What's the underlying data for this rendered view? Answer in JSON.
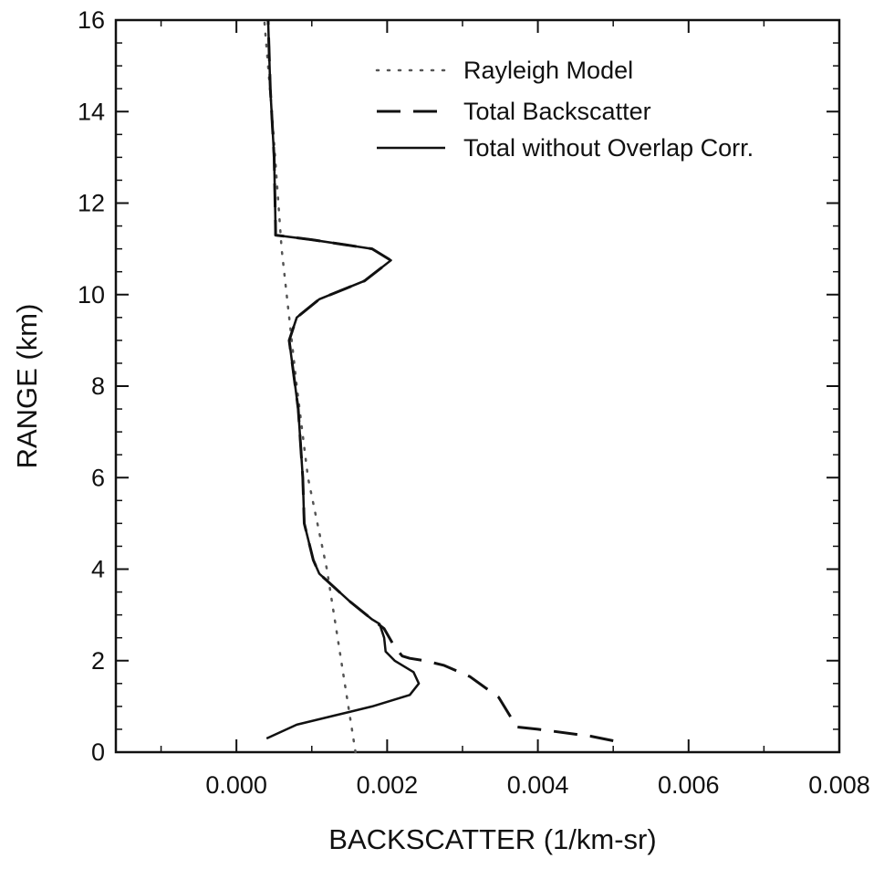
{
  "chart_data": {
    "type": "line",
    "title": "",
    "xlabel": "BACKSCATTER (1/km-sr)",
    "ylabel": "RANGE (km)",
    "xlim": [
      -0.0016,
      0.008
    ],
    "ylim": [
      0,
      16
    ],
    "x_ticks": [
      0.0,
      0.002,
      0.004,
      0.006,
      0.008
    ],
    "x_tick_labels": [
      "0.000",
      "0.002",
      "0.004",
      "0.006",
      "0.008"
    ],
    "y_ticks": [
      0,
      2,
      4,
      6,
      8,
      10,
      12,
      14,
      16
    ],
    "y_tick_labels": [
      "0",
      "2",
      "4",
      "6",
      "8",
      "10",
      "12",
      "14",
      "16"
    ],
    "grid": false,
    "legend_position": "top-right",
    "series": [
      {
        "name": "Rayleigh Model",
        "style": "dotted",
        "color": "#555555",
        "x": [
          0.00158,
          0.0012,
          0.00095,
          0.0008,
          0.0006,
          0.00047,
          0.00037
        ],
        "y": [
          0.0,
          4.0,
          6.0,
          8.0,
          11.0,
          14.0,
          16.0
        ]
      },
      {
        "name": "Total Backscatter",
        "style": "dashed",
        "color": "#111111",
        "x": [
          0.005,
          0.0047,
          0.004,
          0.00372,
          0.00348,
          0.0031,
          0.00275,
          0.0025,
          0.0023,
          0.0022,
          0.0021,
          0.00196,
          0.0018,
          0.0015,
          0.0011,
          0.00102,
          0.0009,
          0.00088,
          0.00082,
          0.0007,
          0.0008,
          0.0011,
          0.0017,
          0.00205,
          0.0018,
          0.001,
          0.00052,
          0.00052,
          0.0005,
          0.00045,
          0.00042
        ],
        "y": [
          0.25,
          0.35,
          0.5,
          0.55,
          1.2,
          1.65,
          1.9,
          2.0,
          2.05,
          2.1,
          2.3,
          2.7,
          2.9,
          3.3,
          3.9,
          4.2,
          5.0,
          6.0,
          7.5,
          9.0,
          9.5,
          9.9,
          10.3,
          10.75,
          11.0,
          11.2,
          11.3,
          11.4,
          13.0,
          14.5,
          16.0
        ]
      },
      {
        "name": "Total without Overlap Corr.",
        "style": "solid",
        "color": "#111111",
        "x": [
          0.0004,
          0.0008,
          0.0013,
          0.0018,
          0.0023,
          0.00242,
          0.00235,
          0.0021,
          0.00198,
          0.00196,
          0.0019,
          0.0018,
          0.0015,
          0.0011,
          0.00102,
          0.0009,
          0.00088,
          0.00082,
          0.0007,
          0.0008,
          0.0011,
          0.0017,
          0.00205,
          0.0018,
          0.001,
          0.00052,
          0.00052,
          0.0005,
          0.00045,
          0.00042
        ],
        "y": [
          0.3,
          0.6,
          0.8,
          1.0,
          1.25,
          1.5,
          1.75,
          2.0,
          2.2,
          2.5,
          2.8,
          2.9,
          3.3,
          3.9,
          4.2,
          5.0,
          6.0,
          7.5,
          9.0,
          9.5,
          9.9,
          10.3,
          10.75,
          11.0,
          11.2,
          11.3,
          11.4,
          13.0,
          14.5,
          16.0
        ]
      }
    ]
  }
}
